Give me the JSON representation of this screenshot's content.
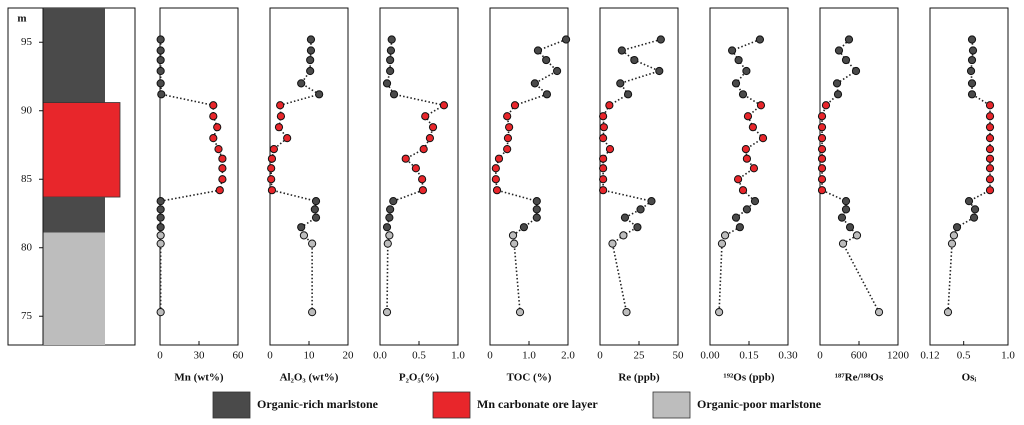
{
  "depth": {
    "unit": "m",
    "ylim": [
      72.9,
      97.5
    ],
    "yticks": [
      75,
      80,
      85,
      90,
      95
    ],
    "values": [
      95.2,
      94.4,
      93.7,
      92.9,
      92.0,
      91.2,
      90.4,
      89.6,
      88.8,
      88.0,
      87.2,
      86.5,
      85.8,
      85.0,
      84.2,
      83.4,
      82.8,
      82.2,
      81.5,
      80.9,
      80.3,
      75.3
    ],
    "sample_colors": [
      "#4a4a4a",
      "#4a4a4a",
      "#4a4a4a",
      "#4a4a4a",
      "#4a4a4a",
      "#4a4a4a",
      "#e8262b",
      "#e8262b",
      "#e8262b",
      "#e8262b",
      "#e8262b",
      "#e8262b",
      "#e8262b",
      "#e8262b",
      "#e8262b",
      "#4a4a4a",
      "#4a4a4a",
      "#4a4a4a",
      "#4a4a4a",
      "#bdbdbd",
      "#bdbdbd",
      "#bdbdbd"
    ]
  },
  "column": {
    "units": [
      {
        "color": "#4a4a4a",
        "top": 97.5,
        "bottom": 90.6
      },
      {
        "color": "#e8262b",
        "top": 90.6,
        "bottom": 83.7
      },
      {
        "color": "#4a4a4a",
        "top": 83.7,
        "bottom": 81.1
      },
      {
        "color": "#bdbdbd",
        "top": 81.1,
        "bottom": 72.9
      }
    ]
  },
  "chart_data": [
    {
      "type": "scatter",
      "x_label": "Mn (wt%)",
      "xlim": [
        0,
        60
      ],
      "xticks": [
        0,
        30,
        60
      ],
      "values": [
        0.5,
        0.5,
        0.5,
        0.5,
        0.5,
        1,
        41,
        41,
        44,
        41,
        45,
        48,
        48,
        48,
        46,
        0.5,
        0.5,
        0.5,
        0.5,
        0.5,
        0.5,
        0.5
      ]
    },
    {
      "type": "scatter",
      "x_label": "Al₂O₃ (wt%)",
      "xlim": [
        0,
        20
      ],
      "xticks": [
        0,
        10,
        20
      ],
      "values": [
        10.5,
        10.5,
        10.3,
        10.3,
        8,
        12.6,
        2.6,
        2.8,
        2.3,
        4.4,
        1,
        0.5,
        0.3,
        0.3,
        0.5,
        11.8,
        11.5,
        11.8,
        8,
        8.7,
        10.8,
        10.8
      ]
    },
    {
      "type": "scatter",
      "x_label": "P₂O₅(%)",
      "xlim": [
        0,
        1
      ],
      "xticks": [
        {
          "value": 0,
          "label": "0.0"
        },
        0.5,
        {
          "value": 1,
          "label": "1.0"
        }
      ],
      "values": [
        0.15,
        0.14,
        0.13,
        0.13,
        0.09,
        0.18,
        0.82,
        0.58,
        0.68,
        0.64,
        0.56,
        0.33,
        0.46,
        0.54,
        0.55,
        0.17,
        0.13,
        0.12,
        0.09,
        0.12,
        0.1,
        0.09
      ]
    },
    {
      "type": "scatter",
      "x_label": "TOC (%)",
      "xlim": [
        0,
        2
      ],
      "xticks": [
        0,
        {
          "value": 1,
          "label": "1.0"
        },
        {
          "value": 2,
          "label": "2.0"
        }
      ],
      "values": [
        1.95,
        1.23,
        1.44,
        1.72,
        1.15,
        1.46,
        0.64,
        0.44,
        0.49,
        0.46,
        0.44,
        0.23,
        0.15,
        0.15,
        0.18,
        1.2,
        1.2,
        1.2,
        0.87,
        0.59,
        0.62,
        0.77
      ]
    },
    {
      "type": "scatter",
      "x_label": "Re (ppb)",
      "xlim": [
        0,
        50
      ],
      "xticks": [
        0,
        25,
        50
      ],
      "values": [
        39,
        14,
        22,
        38,
        13,
        18,
        6,
        2,
        2.5,
        2,
        6.4,
        2,
        2,
        2,
        2,
        33,
        26,
        16,
        24,
        15,
        8,
        17
      ]
    },
    {
      "type": "scatter",
      "x_label": "¹⁹²Os (ppb)",
      "xlim": [
        0,
        0.3
      ],
      "xticks": [
        {
          "value": 0,
          "label": "0.00"
        },
        0.15,
        {
          "value": 0.3,
          "label": "0.30"
        }
      ],
      "values": [
        0.192,
        0.085,
        0.11,
        0.14,
        0.1,
        0.127,
        0.196,
        0.146,
        0.165,
        0.204,
        0.138,
        0.142,
        0.169,
        0.108,
        0.127,
        0.173,
        0.142,
        0.1,
        0.115,
        0.058,
        0.046,
        0.035
      ]
    },
    {
      "type": "scatter",
      "x_label": "¹⁸⁷Re/¹⁸⁸Os",
      "xlim": [
        0,
        1200
      ],
      "xticks": [
        0,
        600,
        1200
      ],
      "values": [
        446,
        292,
        400,
        554,
        262,
        277,
        92,
        31,
        31,
        31,
        31,
        31,
        31,
        31,
        31,
        400,
        400,
        338,
        462,
        569,
        354,
        908
      ]
    },
    {
      "type": "scatter",
      "x_label": "Osᵢ",
      "xlim": [
        0.12,
        1
      ],
      "xticks": [
        0.12,
        0.5,
        {
          "value": 1,
          "label": "1.0"
        }
      ],
      "values": [
        0.594,
        0.605,
        0.594,
        0.583,
        0.594,
        0.594,
        0.797,
        0.797,
        0.797,
        0.797,
        0.797,
        0.797,
        0.797,
        0.797,
        0.797,
        0.56,
        0.628,
        0.617,
        0.425,
        0.39,
        0.368,
        0.323
      ]
    }
  ],
  "legend": [
    {
      "name": "Organic-rich marlstone",
      "color": "#4a4a4a"
    },
    {
      "name": "Mn carbonate ore layer",
      "color": "#e8262b"
    },
    {
      "name": "Organic-poor marlstone",
      "color": "#bdbdbd"
    }
  ]
}
